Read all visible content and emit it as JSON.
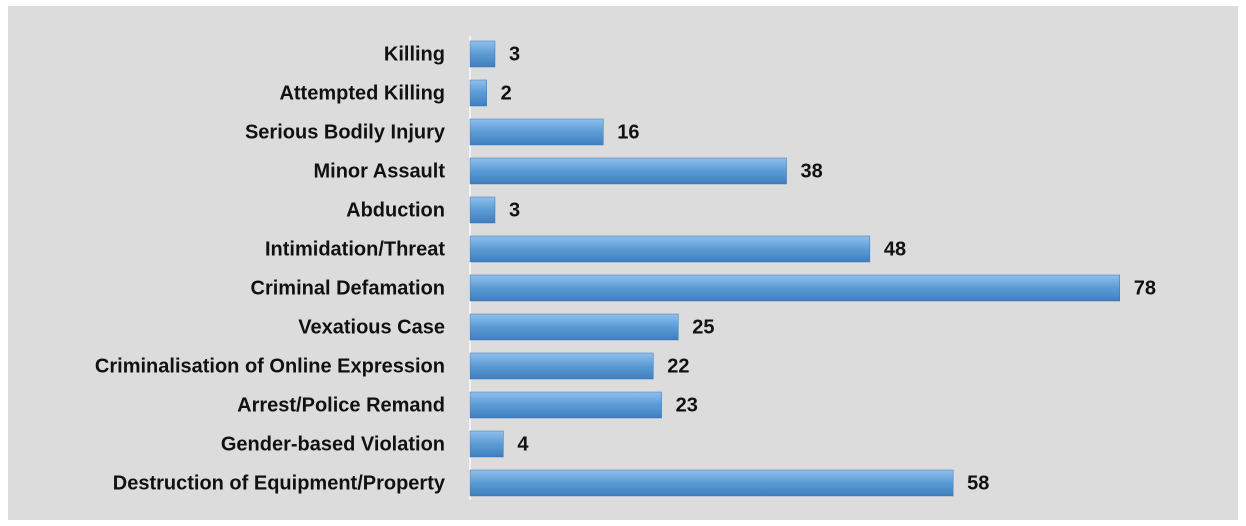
{
  "chart_data": {
    "type": "bar",
    "orientation": "horizontal",
    "categories": [
      "Killing",
      "Attempted Killing",
      "Serious Bodily Injury",
      "Minor Assault",
      "Abduction",
      "Intimidation/Threat",
      "Criminal Defamation",
      "Vexatious Case",
      "Criminalisation of Online Expression",
      "Arrest/Police Remand",
      "Gender-based Violation",
      "Destruction of Equipment/Property"
    ],
    "values": [
      3,
      2,
      16,
      38,
      3,
      48,
      78,
      25,
      22,
      23,
      4,
      58
    ],
    "color": "#5b9bd5"
  }
}
